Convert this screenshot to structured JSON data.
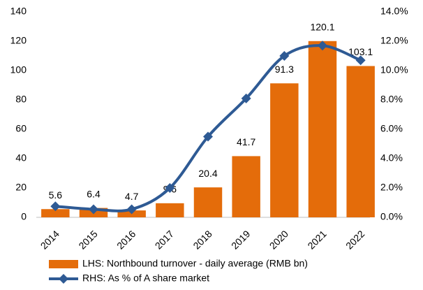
{
  "chart_data": {
    "type": "bar",
    "categories": [
      "2014",
      "2015",
      "2016",
      "2017",
      "2018",
      "2019",
      "2020",
      "2021",
      "2022"
    ],
    "series": [
      {
        "name": "LHS: Northbound turnover - daily average (RMB bn)",
        "color": "#e46c0a",
        "type": "bar",
        "values": [
          5.6,
          6.4,
          4.7,
          9.6,
          20.4,
          41.7,
          91.3,
          120.1,
          103.1
        ]
      },
      {
        "name": "RHS: As % of A share market",
        "color": "#2e5a94",
        "type": "line",
        "axis": "y2",
        "values": [
          0.75,
          0.55,
          0.55,
          2.0,
          5.5,
          8.1,
          11.0,
          11.7,
          10.7
        ]
      }
    ],
    "ylim": [
      0,
      140
    ],
    "yticks": [
      0,
      20,
      40,
      60,
      80,
      100,
      120,
      140
    ],
    "y2lim": [
      0,
      14
    ],
    "y2ticks": [
      {
        "value": 0,
        "label": "0.0%"
      },
      {
        "value": 2,
        "label": "2.0%"
      },
      {
        "value": 4,
        "label": "4.0%"
      },
      {
        "value": 6,
        "label": "6.0%"
      },
      {
        "value": 8,
        "label": "8.0%"
      },
      {
        "value": 10,
        "label": "10.0%"
      },
      {
        "value": 12,
        "label": "12.0%"
      },
      {
        "value": 14,
        "label": "14.0%"
      }
    ],
    "legend": "bottom"
  }
}
